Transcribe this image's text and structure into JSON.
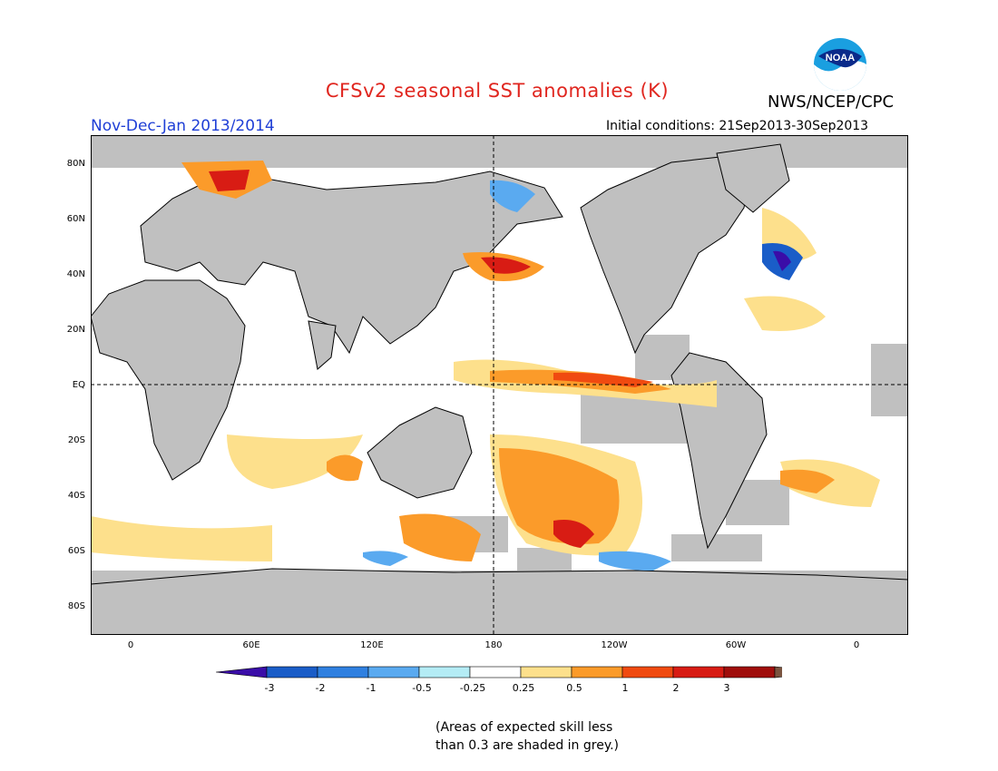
{
  "title": "CFSv2 seasonal SST anomalies (K)",
  "agency": "NWS/NCEP/CPC",
  "logo_text": "NOAA",
  "period": "Nov-Dec-Jan 2013/2014",
  "initial_conditions": "Initial conditions: 21Sep2013-30Sep2013",
  "lat_labels": [
    "80N",
    "60N",
    "40N",
    "20N",
    "EQ",
    "20S",
    "40S",
    "60S",
    "80S"
  ],
  "lon_labels": [
    "0",
    "60E",
    "120E",
    "180",
    "120W",
    "60W",
    "0"
  ],
  "colorbar": {
    "labels": [
      "-3",
      "-2",
      "-1",
      "-0.5",
      "-0.25",
      "0.25",
      "0.5",
      "1",
      "2",
      "3"
    ],
    "colors": [
      "#3a0da8",
      "#1a5dc8",
      "#2f80e0",
      "#5aaaf0",
      "#b4ecf5",
      "#ffffff",
      "#fde08c",
      "#fb9b2a",
      "#f04a10",
      "#d81c14",
      "#a00e0c",
      "#7a5440"
    ]
  },
  "note_lines": [
    "(Areas of expected skill less",
    "than 0.3 are shaded in grey.)"
  ],
  "colors": {
    "land": "#c0c0c0",
    "ocean": "#ffffff",
    "title": "#e0261f",
    "period": "#1f3fd6"
  }
}
